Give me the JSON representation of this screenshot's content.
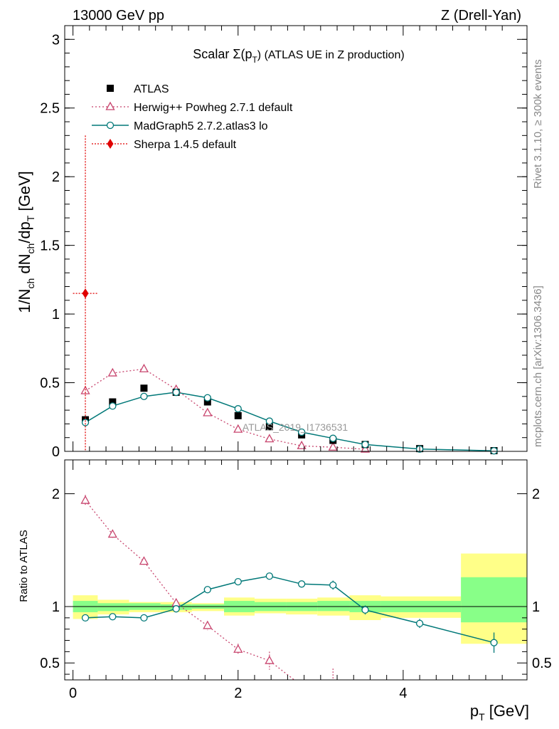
{
  "header": {
    "left": "13000 GeV pp",
    "right": "Z (Drell-Yan)",
    "side_top": "Rivet 3.1.10, ≥ 300k events",
    "side_bottom": "mcplots.cern.ch [arXiv:1306.3436]"
  },
  "colors": {
    "atlas": "#000000",
    "herwig": "#c8456e",
    "madgraph": "#007878",
    "sherpa": "#e00000",
    "band_outer": "#ffff88",
    "band_inner": "#88ff88"
  },
  "chart_data": [
    {
      "type": "scatter",
      "title": "Scalar Σ(pT) (ATLAS UE in Z production)",
      "title_main": "Scalar Σ(p",
      "title_sub": "T",
      "title_tail": ") (ATLAS UE in Z production)",
      "watermark": "ATLAS_2019_I1736531",
      "ylabel": "1/Nch dNch/dpT [GeV]",
      "ylim": [
        0,
        3.1
      ],
      "xlim": [
        -0.1,
        5.5
      ],
      "yticks": [
        "0",
        "0.5",
        "1",
        "1.5",
        "2",
        "2.5",
        "3"
      ],
      "legend": [
        "ATLAS",
        "Herwig++ Powheg 2.7.1 default",
        "MadGraph5 2.7.2.atlas3 lo",
        "Sherpa 1.4.5 default"
      ],
      "series": [
        {
          "name": "ATLAS",
          "x": [
            0.15,
            0.48,
            0.86,
            1.25,
            1.63,
            2.0,
            2.38,
            2.77,
            3.15,
            3.54,
            4.2,
            5.1
          ],
          "y": [
            0.23,
            0.36,
            0.46,
            0.43,
            0.36,
            0.26,
            0.18,
            0.12,
            0.08,
            0.05,
            0.02,
            0.005
          ]
        },
        {
          "name": "Herwig++ Powheg 2.7.1 default",
          "x": [
            0.15,
            0.48,
            0.86,
            1.25,
            1.63,
            2.0,
            2.38,
            2.77,
            3.15,
            3.54
          ],
          "y": [
            0.44,
            0.57,
            0.6,
            0.45,
            0.28,
            0.16,
            0.09,
            0.04,
            0.03,
            0.015
          ]
        },
        {
          "name": "MadGraph5 2.7.2.atlas3 lo",
          "x": [
            0.15,
            0.48,
            0.86,
            1.25,
            1.63,
            2.0,
            2.38,
            2.77,
            3.15,
            3.54,
            4.2,
            5.1
          ],
          "y": [
            0.21,
            0.33,
            0.4,
            0.43,
            0.39,
            0.31,
            0.22,
            0.14,
            0.095,
            0.05,
            0.017,
            0.004
          ]
        },
        {
          "name": "Sherpa 1.4.5 default",
          "x": [
            0.15
          ],
          "y": [
            1.15
          ],
          "yerr_low": [
            1.15
          ],
          "yerr_high": [
            1.15
          ],
          "xerr": [
            0.15
          ]
        }
      ]
    },
    {
      "type": "scatter",
      "ylabel": "Ratio to ATLAS",
      "xlabel": "pT [GeV]",
      "xlabel_main": "p",
      "xlabel_sub": "T",
      "xlabel_tail": " [GeV]",
      "ylim": [
        0.35,
        2.3
      ],
      "xlim": [
        -0.1,
        5.5
      ],
      "xticks": [
        "0",
        "2",
        "4"
      ],
      "yticks": [
        "0.5",
        "1",
        "2"
      ],
      "band": {
        "edges": [
          0,
          0.3,
          0.68,
          1.06,
          1.44,
          1.83,
          2.2,
          2.58,
          2.96,
          3.35,
          3.73,
          4.7,
          5.5
        ],
        "outer_low": [
          0.89,
          0.93,
          0.95,
          0.95,
          0.96,
          0.92,
          0.94,
          0.93,
          0.92,
          0.88,
          0.9,
          0.67
        ],
        "outer_high": [
          1.1,
          1.06,
          1.04,
          1.04,
          1.03,
          1.08,
          1.07,
          1.07,
          1.08,
          1.1,
          1.09,
          1.47
        ],
        "inner_low": [
          0.95,
          0.96,
          0.97,
          0.97,
          0.98,
          0.95,
          0.96,
          0.96,
          0.96,
          0.95,
          0.95,
          0.86
        ],
        "inner_high": [
          1.05,
          1.03,
          1.03,
          1.02,
          1.02,
          1.05,
          1.04,
          1.04,
          1.05,
          1.05,
          1.05,
          1.26
        ]
      },
      "series": [
        {
          "name": "Herwig++ Powheg 2.7.1 default",
          "x": [
            0.15,
            0.48,
            0.86,
            1.25,
            1.63,
            2.0,
            2.38,
            3.15
          ],
          "y": [
            1.94,
            1.64,
            1.4,
            1.03,
            0.83,
            0.62,
            0.52,
            0.35
          ],
          "err": [
            0.05,
            0.03,
            0.03,
            0.03,
            0.04,
            0.05,
            0.08,
            0.1
          ]
        },
        {
          "name": "MadGraph5 2.7.2.atlas3 lo",
          "x": [
            0.15,
            0.48,
            0.86,
            1.25,
            1.63,
            2.0,
            2.38,
            2.77,
            3.15,
            3.54,
            4.2,
            5.1
          ],
          "y": [
            0.9,
            0.91,
            0.9,
            0.98,
            1.15,
            1.22,
            1.27,
            1.2,
            1.19,
            0.97,
            0.85,
            0.68
          ],
          "err": [
            0.02,
            0.01,
            0.01,
            0.01,
            0.01,
            0.01,
            0.02,
            0.03,
            0.04,
            0.04,
            0.04,
            0.09
          ]
        }
      ]
    }
  ]
}
